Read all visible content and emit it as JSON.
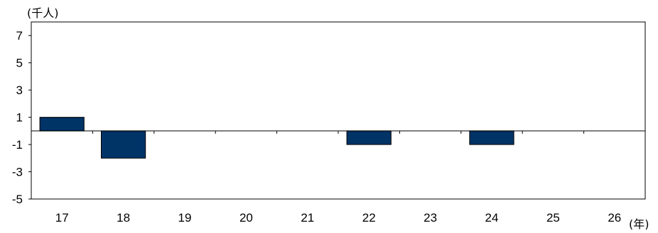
{
  "chart_data": {
    "type": "bar",
    "ylabel": "(千人)",
    "xlabel": "(年)",
    "categories": [
      "17",
      "18",
      "19",
      "20",
      "21",
      "22",
      "23",
      "24",
      "25",
      "26"
    ],
    "values": [
      1,
      -2,
      0,
      0,
      0,
      -1,
      0,
      -1,
      0,
      0
    ],
    "ylim": [
      -5,
      8
    ],
    "yticks": [
      7,
      5,
      3,
      1,
      -1,
      -3,
      -5
    ],
    "bar_color": "#003366",
    "grid": false
  }
}
